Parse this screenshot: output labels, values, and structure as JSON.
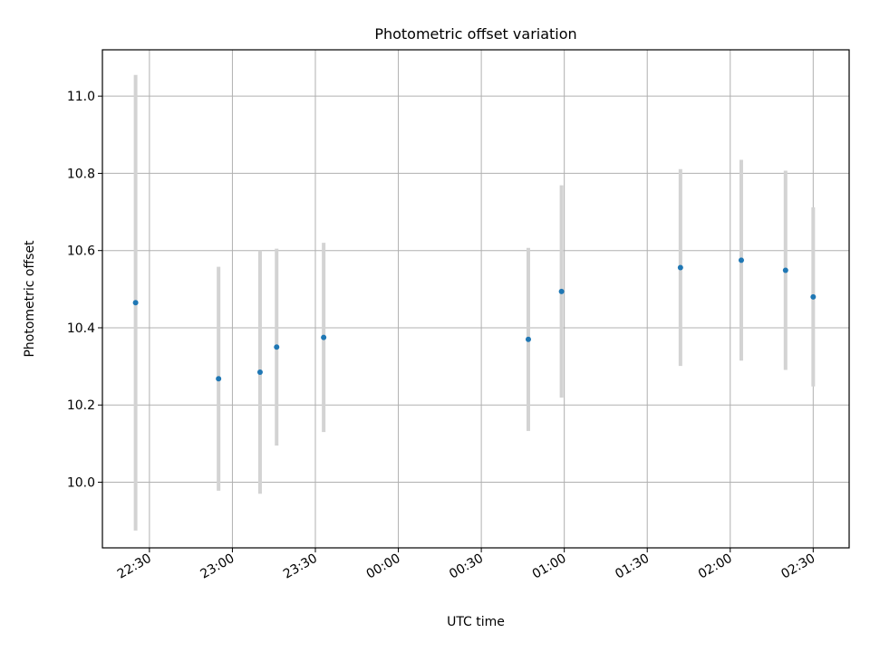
{
  "chart_data": {
    "type": "scatter",
    "title": "Photometric offset variation",
    "xlabel": "UTC time",
    "ylabel": "Photometric offset",
    "xlim": [
      "22:13",
      "02:43"
    ],
    "ylim": [
      9.83,
      11.12
    ],
    "grid": true,
    "x_ticks": [
      "22:30",
      "23:00",
      "23:30",
      "00:00",
      "00:30",
      "01:00",
      "01:30",
      "02:00",
      "02:30"
    ],
    "y_ticks": [
      "10.0",
      "10.2",
      "10.4",
      "10.6",
      "10.8",
      "11.0"
    ],
    "colors": {
      "point": "#1f77b4",
      "errorbar": "#d3d3d3",
      "grid": "#b0b0b0",
      "frame": "#000000"
    },
    "series": [
      {
        "points": [
          {
            "x": "22:25",
            "y": 10.465,
            "err": 0.59
          },
          {
            "x": "22:55",
            "y": 10.268,
            "err": 0.29
          },
          {
            "x": "23:10",
            "y": 10.285,
            "err": 0.315
          },
          {
            "x": "23:16",
            "y": 10.35,
            "err": 0.255
          },
          {
            "x": "23:33",
            "y": 10.375,
            "err": 0.245
          },
          {
            "x": "00:47",
            "y": 10.37,
            "err": 0.237
          },
          {
            "x": "00:59",
            "y": 10.494,
            "err": 0.275
          },
          {
            "x": "01:42",
            "y": 10.556,
            "err": 0.255
          },
          {
            "x": "02:04",
            "y": 10.575,
            "err": 0.26
          },
          {
            "x": "02:20",
            "y": 10.549,
            "err": 0.258
          },
          {
            "x": "02:30",
            "y": 10.48,
            "err": 0.232
          }
        ]
      }
    ]
  }
}
